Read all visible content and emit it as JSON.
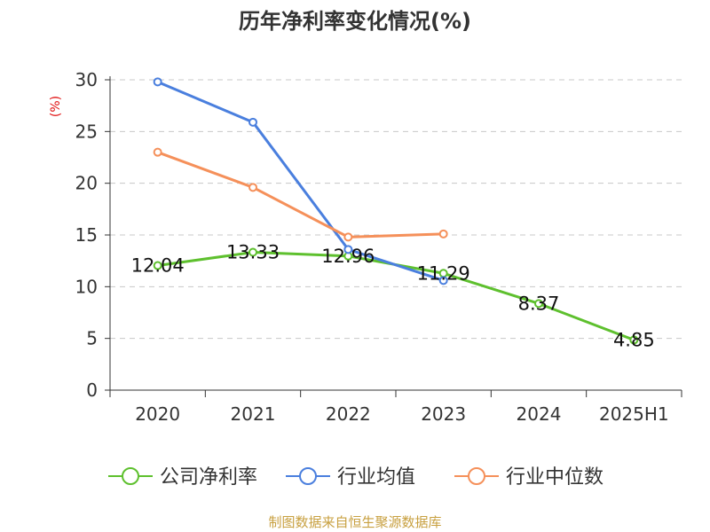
{
  "chart_data": {
    "type": "line",
    "title": "历年净利率变化情况(%)",
    "ylabel": "(%)",
    "xlabel": "",
    "categories": [
      "2020",
      "2021",
      "2022",
      "2023",
      "2024",
      "2025H1"
    ],
    "ylim": [
      0,
      30
    ],
    "yticks": [
      0,
      5,
      10,
      15,
      20,
      25,
      30
    ],
    "grid": true,
    "legend_position": "bottom",
    "series": [
      {
        "name": "公司净利率",
        "color": "#5ec02e",
        "values": [
          12.04,
          13.33,
          12.96,
          11.29,
          8.37,
          4.85
        ],
        "labels": [
          "12.04",
          "13.33",
          "12.96",
          "11.29",
          "8.37",
          "4.85"
        ]
      },
      {
        "name": "行业均值",
        "color": "#4a7fde",
        "values": [
          29.8,
          25.9,
          13.6,
          10.6,
          null,
          null
        ]
      },
      {
        "name": "行业中位数",
        "color": "#f5905a",
        "values": [
          23.0,
          19.6,
          14.8,
          15.1,
          null,
          null
        ]
      }
    ]
  },
  "footer": {
    "source": "制图数据来自恒生聚源数据库"
  }
}
